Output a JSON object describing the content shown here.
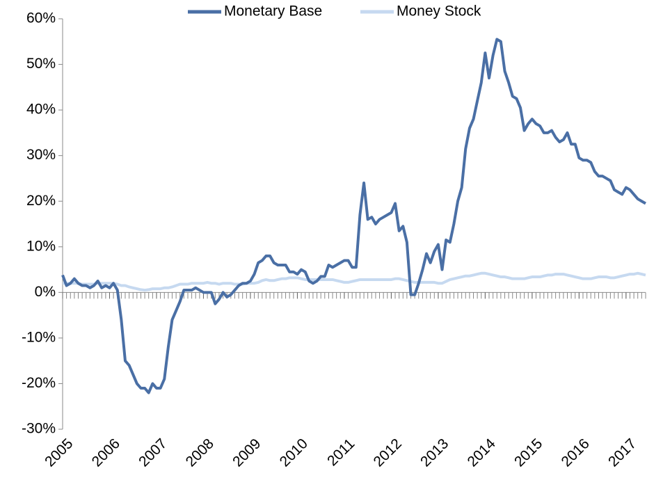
{
  "chart_data": {
    "type": "line",
    "x": [
      2005,
      2005.083,
      2005.167,
      2005.25,
      2005.333,
      2005.417,
      2005.5,
      2005.583,
      2005.667,
      2005.75,
      2005.833,
      2005.917,
      2006,
      2006.083,
      2006.167,
      2006.25,
      2006.333,
      2006.417,
      2006.5,
      2006.583,
      2006.667,
      2006.75,
      2006.833,
      2006.917,
      2007,
      2007.083,
      2007.167,
      2007.25,
      2007.333,
      2007.417,
      2007.5,
      2007.583,
      2007.667,
      2007.75,
      2007.833,
      2007.917,
      2008,
      2008.083,
      2008.167,
      2008.25,
      2008.333,
      2008.417,
      2008.5,
      2008.583,
      2008.667,
      2008.75,
      2008.833,
      2008.917,
      2009,
      2009.083,
      2009.167,
      2009.25,
      2009.333,
      2009.417,
      2009.5,
      2009.583,
      2009.667,
      2009.75,
      2009.833,
      2009.917,
      2010,
      2010.083,
      2010.167,
      2010.25,
      2010.333,
      2010.417,
      2010.5,
      2010.583,
      2010.667,
      2010.75,
      2010.833,
      2010.917,
      2011,
      2011.083,
      2011.167,
      2011.25,
      2011.333,
      2011.417,
      2011.5,
      2011.583,
      2011.667,
      2011.75,
      2011.833,
      2011.917,
      2012,
      2012.083,
      2012.167,
      2012.25,
      2012.333,
      2012.417,
      2012.5,
      2012.583,
      2012.667,
      2012.75,
      2012.833,
      2012.917,
      2013,
      2013.083,
      2013.167,
      2013.25,
      2013.333,
      2013.417,
      2013.5,
      2013.583,
      2013.667,
      2013.75,
      2013.833,
      2013.917,
      2014,
      2014.083,
      2014.167,
      2014.25,
      2014.333,
      2014.417,
      2014.5,
      2014.583,
      2014.667,
      2014.75,
      2014.833,
      2014.917,
      2015,
      2015.083,
      2015.167,
      2015.25,
      2015.333,
      2015.417,
      2015.5,
      2015.583,
      2015.667,
      2015.75,
      2015.833,
      2015.917,
      2016,
      2016.083,
      2016.167,
      2016.25,
      2016.333,
      2016.417,
      2016.5,
      2016.583,
      2016.667,
      2016.75,
      2016.833,
      2016.917,
      2017,
      2017.083,
      2017.167,
      2017.25,
      2017.333,
      2017.417
    ],
    "series": [
      {
        "name": "Monetary Base",
        "color": "#4a6fa5",
        "width": 4,
        "values": [
          3.8,
          1.5,
          2,
          3,
          2,
          1.5,
          1.5,
          1,
          1.5,
          2.5,
          1,
          1.5,
          1,
          2,
          0.5,
          -6,
          -15,
          -16,
          -18,
          -20,
          -21,
          -21,
          -22,
          -20,
          -21,
          -21,
          -19,
          -12,
          -6,
          -4,
          -2,
          0.5,
          0.5,
          0.5,
          1,
          0.5,
          0,
          0,
          0,
          -2.5,
          -1.5,
          0,
          -1,
          -0.5,
          0.5,
          1.5,
          2,
          2,
          2.5,
          4,
          6.5,
          7,
          8,
          8,
          6.5,
          6,
          6,
          6,
          4.5,
          4.5,
          4,
          5,
          4.5,
          2.5,
          2,
          2.5,
          3.5,
          3.5,
          6,
          5.5,
          6,
          6.5,
          7,
          7,
          5.5,
          5.5,
          17,
          24,
          16,
          16.5,
          15,
          16,
          16.5,
          17,
          17.5,
          19.5,
          13.5,
          14.5,
          11,
          -0.5,
          -0.5,
          2,
          5,
          8.5,
          6.5,
          9,
          10.5,
          5,
          11.5,
          11,
          15,
          20,
          23,
          31.5,
          36,
          38,
          42,
          46,
          52.5,
          47,
          52,
          55.5,
          55,
          48.5,
          46,
          43,
          42.5,
          40.5,
          35.5,
          37,
          38,
          37,
          36.5,
          35,
          35,
          35.5,
          34,
          33,
          33.5,
          35,
          32.5,
          32.5,
          29.5,
          29,
          29,
          28.5,
          26.5,
          25.5,
          25.5,
          25,
          24.5,
          22.5,
          22,
          21.5,
          23,
          22.5,
          21.5,
          20.5,
          20,
          19.5
        ]
      },
      {
        "name": "Money Stock",
        "color": "#c6d9f0",
        "width": 4,
        "values": [
          2,
          2,
          2,
          2,
          2,
          1.8,
          1.8,
          1.8,
          1.8,
          2,
          2,
          2,
          2,
          2,
          1.8,
          1.5,
          1.5,
          1.2,
          1,
          0.8,
          0.6,
          0.5,
          0.6,
          0.8,
          0.8,
          0.8,
          1,
          1,
          1.2,
          1.5,
          1.8,
          1.8,
          1.8,
          2,
          2,
          2,
          2,
          2.2,
          2,
          2,
          1.8,
          2,
          2,
          2,
          1.8,
          1.8,
          1.8,
          2,
          2,
          2,
          2.2,
          2.6,
          2.8,
          2.6,
          2.6,
          2.8,
          3,
          3,
          3.2,
          3.2,
          3.2,
          3,
          2.8,
          2.8,
          2.8,
          2.8,
          2.8,
          2.8,
          2.8,
          2.8,
          2.6,
          2.4,
          2.2,
          2.2,
          2.4,
          2.6,
          2.8,
          2.8,
          2.8,
          2.8,
          2.8,
          2.8,
          2.8,
          2.8,
          2.8,
          3,
          3,
          2.8,
          2.6,
          2.4,
          2.2,
          2.2,
          2.2,
          2.2,
          2.2,
          2.2,
          2,
          2,
          2.4,
          2.8,
          3,
          3.2,
          3.4,
          3.6,
          3.6,
          3.8,
          4,
          4.2,
          4.2,
          4,
          3.8,
          3.6,
          3.4,
          3.4,
          3.2,
          3,
          3,
          3,
          3,
          3.2,
          3.4,
          3.4,
          3.4,
          3.6,
          3.8,
          3.8,
          4,
          4,
          4,
          3.8,
          3.6,
          3.4,
          3.2,
          3,
          3,
          3,
          3.2,
          3.4,
          3.4,
          3.4,
          3.2,
          3.2,
          3.4,
          3.6,
          3.8,
          4,
          4,
          4.2,
          4,
          3.8
        ]
      }
    ],
    "xlim": [
      2005,
      2017.417
    ],
    "xticks": [
      2005,
      2006,
      2007,
      2008,
      2009,
      2010,
      2011,
      2012,
      2013,
      2014,
      2015,
      2016,
      2017
    ],
    "ylim": [
      -30,
      60
    ],
    "yticks": [
      {
        "value": -30,
        "label": "-30%"
      },
      {
        "value": -20,
        "label": "-20%"
      },
      {
        "value": -10,
        "label": "-10%"
      },
      {
        "value": 0,
        "label": "0%"
      },
      {
        "value": 10,
        "label": "10%"
      },
      {
        "value": 20,
        "label": "20%"
      },
      {
        "value": 30,
        "label": "30%"
      },
      {
        "value": 40,
        "label": "40%"
      },
      {
        "value": 50,
        "label": "50%"
      },
      {
        "value": 60,
        "label": "60%"
      }
    ],
    "legend": "top"
  }
}
